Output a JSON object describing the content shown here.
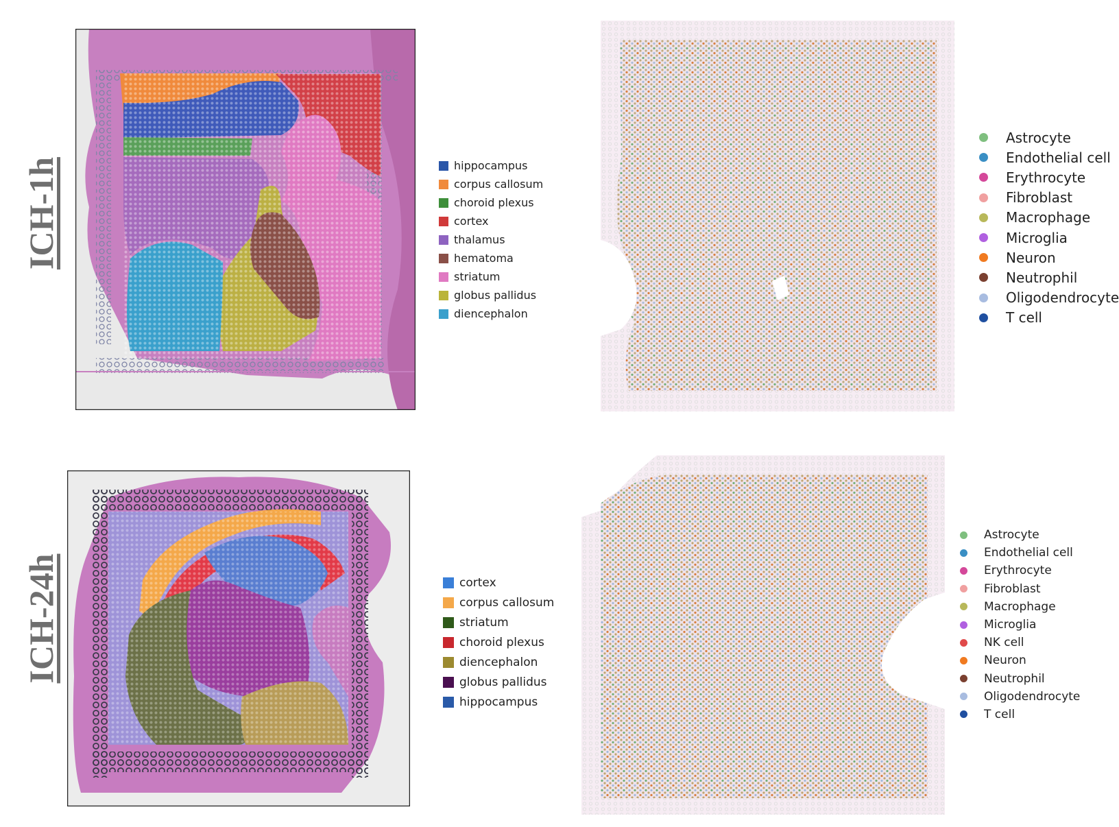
{
  "rows": [
    {
      "label": "ICH-1h",
      "region_legend": [
        {
          "label": "hippocampus",
          "color": "#2a56a8"
        },
        {
          "label": "corpus callosum",
          "color": "#f08a3c"
        },
        {
          "label": "choroid plexus",
          "color": "#3e8f3a"
        },
        {
          "label": "cortex",
          "color": "#d03a3a"
        },
        {
          "label": "thalamus",
          "color": "#8e63c0"
        },
        {
          "label": "hematoma",
          "color": "#8a5048"
        },
        {
          "label": "striatum",
          "color": "#e07ac2"
        },
        {
          "label": "globus pallidus",
          "color": "#bab43a"
        },
        {
          "label": "diencephalon",
          "color": "#3aa0cc"
        }
      ],
      "celltype_legend": [
        {
          "label": "Astrocyte",
          "color": "#7fbf7f"
        },
        {
          "label": "Endothelial cell",
          "color": "#3a8fc4"
        },
        {
          "label": "Erythrocyte",
          "color": "#d4489a"
        },
        {
          "label": "Fibroblast",
          "color": "#f0a0a0"
        },
        {
          "label": "Macrophage",
          "color": "#b8b85a"
        },
        {
          "label": "Microglia",
          "color": "#b060e0"
        },
        {
          "label": "Neuron",
          "color": "#f07a20"
        },
        {
          "label": "Neutrophil",
          "color": "#7a4030"
        },
        {
          "label": "Oligodendrocyte",
          "color": "#a8bce0"
        },
        {
          "label": "T cell",
          "color": "#1f4fa0"
        }
      ]
    },
    {
      "label": "ICH-24h",
      "region_legend": [
        {
          "label": "cortex",
          "color": "#3a7fd8"
        },
        {
          "label": "corpus callosum",
          "color": "#f4a84a"
        },
        {
          "label": "striatum",
          "color": "#2f5a1a"
        },
        {
          "label": "choroid plexus",
          "color": "#c8282e"
        },
        {
          "label": "diencephalon",
          "color": "#9c8a30"
        },
        {
          "label": "globus pallidus",
          "color": "#4a1050"
        },
        {
          "label": "hippocampus",
          "color": "#2a5aa8"
        }
      ],
      "celltype_legend": [
        {
          "label": "Astrocyte",
          "color": "#7fbf7f"
        },
        {
          "label": "Endothelial cell",
          "color": "#3a8fc4"
        },
        {
          "label": "Erythrocyte",
          "color": "#d4489a"
        },
        {
          "label": "Fibroblast",
          "color": "#f0a0a0"
        },
        {
          "label": "Macrophage",
          "color": "#b8b85a"
        },
        {
          "label": "Microglia",
          "color": "#b060e0"
        },
        {
          "label": "NK cell",
          "color": "#e04a4a"
        },
        {
          "label": "Neuron",
          "color": "#f07a20"
        },
        {
          "label": "Neutrophil",
          "color": "#7a4030"
        },
        {
          "label": "Oligodendrocyte",
          "color": "#a8bce0"
        },
        {
          "label": "T cell",
          "color": "#1f4fa0"
        }
      ]
    }
  ],
  "colors": {
    "tissue_pink": "#c77cc0",
    "tissue_light": "#f2e4ee",
    "background_gray": "#ececec",
    "fiducial_gray": "#8a8fa8"
  }
}
